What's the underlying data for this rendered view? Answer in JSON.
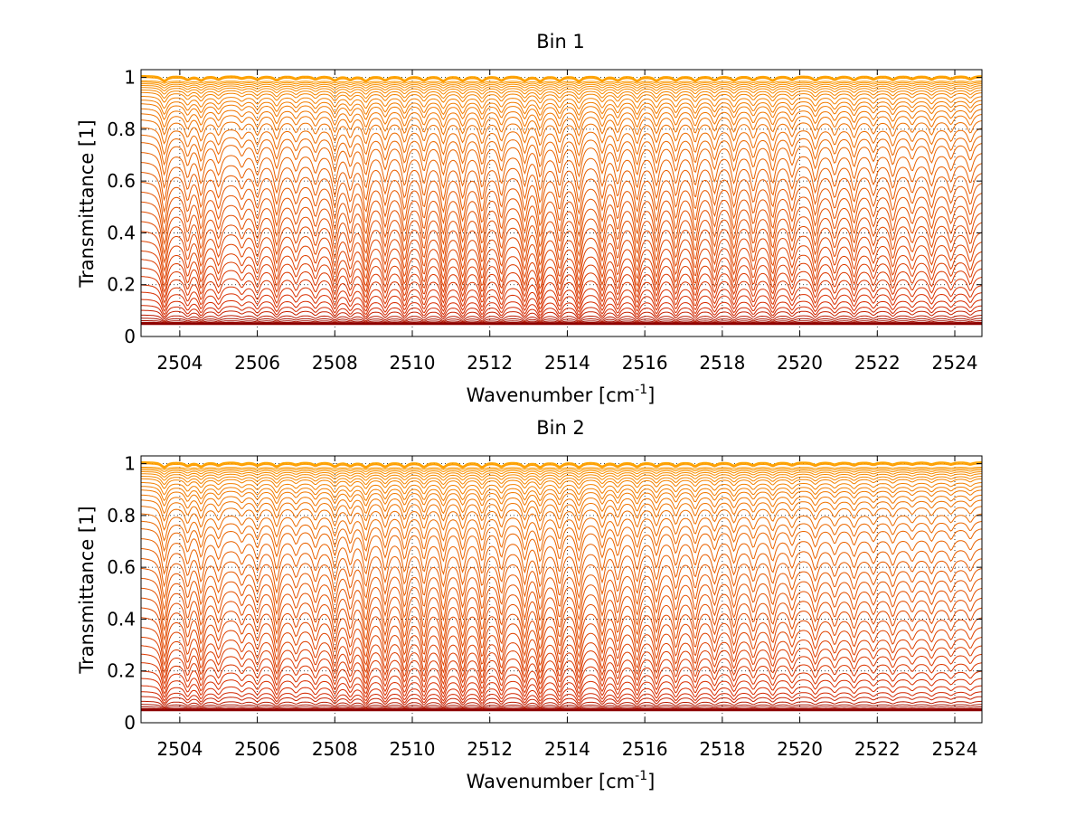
{
  "chart_data": [
    {
      "type": "line",
      "title": "Bin 1",
      "xlabel": "Wavenumber [cm",
      "xlabel_exponent": "-1",
      "xlabel_suffix": "]",
      "ylabel": "Transmittance [1]",
      "xlim": [
        2503,
        2524.7
      ],
      "ylim": [
        0,
        1.03
      ],
      "grid": true,
      "x_ticks": [
        2504,
        2506,
        2508,
        2510,
        2512,
        2514,
        2516,
        2518,
        2520,
        2522,
        2524
      ],
      "y_ticks": [
        0,
        0.2,
        0.4,
        0.6,
        0.8,
        1
      ],
      "y_tick_labels": [
        "0",
        "0.2",
        "0.4",
        "0.6",
        "0.8",
        "1"
      ],
      "series_baselines": [
        0.0,
        0.005,
        0.012,
        0.022,
        0.035,
        0.055,
        0.075,
        0.1,
        0.13,
        0.16,
        0.195,
        0.23,
        0.265,
        0.3,
        0.34,
        0.38,
        0.42,
        0.46,
        0.5,
        0.54,
        0.58,
        0.62,
        0.66,
        0.7,
        0.74,
        0.77,
        0.8,
        0.83,
        0.855,
        0.875,
        0.895,
        0.91,
        0.925,
        0.94,
        0.95,
        0.96,
        0.968,
        0.975,
        0.981,
        0.986,
        0.99,
        0.993,
        0.996,
        0.998
      ],
      "line_color_low": "#8b0000",
      "line_color_mid": "#d72a00",
      "line_color_high": "#ffa500",
      "absorption_lines": [
        {
          "x": 2503.6,
          "depth": 0.9
        },
        {
          "x": 2504.2,
          "depth": 0.6
        },
        {
          "x": 2504.55,
          "depth": 0.75
        },
        {
          "x": 2505.0,
          "depth": 0.55
        },
        {
          "x": 2505.6,
          "depth": 0.35
        },
        {
          "x": 2506.0,
          "depth": 0.55
        },
        {
          "x": 2506.5,
          "depth": 0.7
        },
        {
          "x": 2507.0,
          "depth": 0.45
        },
        {
          "x": 2507.5,
          "depth": 0.5
        },
        {
          "x": 2508.0,
          "depth": 0.75
        },
        {
          "x": 2508.4,
          "depth": 0.6
        },
        {
          "x": 2508.8,
          "depth": 0.85
        },
        {
          "x": 2509.3,
          "depth": 0.7
        },
        {
          "x": 2509.8,
          "depth": 0.8
        },
        {
          "x": 2510.3,
          "depth": 0.75
        },
        {
          "x": 2510.8,
          "depth": 0.85
        },
        {
          "x": 2511.3,
          "depth": 0.8
        },
        {
          "x": 2511.8,
          "depth": 0.85
        },
        {
          "x": 2512.3,
          "depth": 0.75
        },
        {
          "x": 2512.9,
          "depth": 0.8
        },
        {
          "x": 2513.3,
          "depth": 0.9
        },
        {
          "x": 2513.8,
          "depth": 0.8
        },
        {
          "x": 2514.3,
          "depth": 0.9
        },
        {
          "x": 2514.9,
          "depth": 0.8
        },
        {
          "x": 2515.3,
          "depth": 0.75
        },
        {
          "x": 2515.8,
          "depth": 0.85
        },
        {
          "x": 2516.3,
          "depth": 0.8
        },
        {
          "x": 2516.8,
          "depth": 0.75
        },
        {
          "x": 2517.3,
          "depth": 0.8
        },
        {
          "x": 2517.8,
          "depth": 0.7
        },
        {
          "x": 2518.3,
          "depth": 0.75
        },
        {
          "x": 2518.8,
          "depth": 0.65
        },
        {
          "x": 2519.3,
          "depth": 0.75
        },
        {
          "x": 2519.8,
          "depth": 0.6
        },
        {
          "x": 2520.4,
          "depth": 0.7
        },
        {
          "x": 2520.9,
          "depth": 0.55
        },
        {
          "x": 2521.4,
          "depth": 0.65
        },
        {
          "x": 2521.9,
          "depth": 0.5
        },
        {
          "x": 2522.4,
          "depth": 0.6
        },
        {
          "x": 2522.9,
          "depth": 0.45
        },
        {
          "x": 2523.4,
          "depth": 0.55
        },
        {
          "x": 2523.9,
          "depth": 0.45
        },
        {
          "x": 2524.4,
          "depth": 0.5
        }
      ]
    },
    {
      "type": "line",
      "title": "Bin 2",
      "xlabel": "Wavenumber [cm",
      "xlabel_exponent": "-1",
      "xlabel_suffix": "]",
      "ylabel": "Transmittance [1]",
      "xlim": [
        2503,
        2524.7
      ],
      "ylim": [
        0,
        1.03
      ],
      "grid": true,
      "x_ticks": [
        2504,
        2506,
        2508,
        2510,
        2512,
        2514,
        2516,
        2518,
        2520,
        2522,
        2524
      ],
      "y_ticks": [
        0,
        0.2,
        0.4,
        0.6,
        0.8,
        1
      ],
      "y_tick_labels": [
        "0",
        "0.2",
        "0.4",
        "0.6",
        "0.8",
        "1"
      ],
      "series_baselines": [
        0.0,
        0.005,
        0.012,
        0.022,
        0.035,
        0.055,
        0.075,
        0.1,
        0.13,
        0.16,
        0.195,
        0.23,
        0.265,
        0.3,
        0.34,
        0.38,
        0.42,
        0.46,
        0.5,
        0.54,
        0.58,
        0.62,
        0.66,
        0.7,
        0.74,
        0.77,
        0.8,
        0.83,
        0.855,
        0.875,
        0.895,
        0.91,
        0.925,
        0.94,
        0.95,
        0.96,
        0.968,
        0.975,
        0.981,
        0.986,
        0.99,
        0.993,
        0.996,
        0.998
      ],
      "line_color_low": "#8b0000",
      "line_color_mid": "#d72a00",
      "line_color_high": "#ffa500",
      "absorption_lines": [
        {
          "x": 2503.6,
          "depth": 0.9
        },
        {
          "x": 2504.2,
          "depth": 0.6
        },
        {
          "x": 2504.55,
          "depth": 0.75
        },
        {
          "x": 2505.0,
          "depth": 0.5
        },
        {
          "x": 2505.6,
          "depth": 0.35
        },
        {
          "x": 2506.0,
          "depth": 0.5
        },
        {
          "x": 2506.5,
          "depth": 0.75
        },
        {
          "x": 2507.0,
          "depth": 0.4
        },
        {
          "x": 2507.5,
          "depth": 0.5
        },
        {
          "x": 2508.0,
          "depth": 0.7
        },
        {
          "x": 2508.4,
          "depth": 0.6
        },
        {
          "x": 2508.8,
          "depth": 0.85
        },
        {
          "x": 2509.3,
          "depth": 0.75
        },
        {
          "x": 2509.8,
          "depth": 0.8
        },
        {
          "x": 2510.3,
          "depth": 0.8
        },
        {
          "x": 2510.8,
          "depth": 0.85
        },
        {
          "x": 2511.3,
          "depth": 0.8
        },
        {
          "x": 2511.8,
          "depth": 0.85
        },
        {
          "x": 2512.3,
          "depth": 0.75
        },
        {
          "x": 2512.9,
          "depth": 0.8
        },
        {
          "x": 2513.3,
          "depth": 0.85
        },
        {
          "x": 2513.8,
          "depth": 0.8
        },
        {
          "x": 2514.3,
          "depth": 0.85
        },
        {
          "x": 2514.9,
          "depth": 0.75
        },
        {
          "x": 2515.3,
          "depth": 0.7
        },
        {
          "x": 2515.8,
          "depth": 0.75
        },
        {
          "x": 2516.3,
          "depth": 0.7
        },
        {
          "x": 2516.8,
          "depth": 0.65
        },
        {
          "x": 2517.3,
          "depth": 0.65
        },
        {
          "x": 2517.8,
          "depth": 0.55
        },
        {
          "x": 2518.3,
          "depth": 0.6
        },
        {
          "x": 2518.8,
          "depth": 0.5
        },
        {
          "x": 2519.3,
          "depth": 0.55
        },
        {
          "x": 2519.8,
          "depth": 0.45
        },
        {
          "x": 2520.4,
          "depth": 0.5
        },
        {
          "x": 2520.9,
          "depth": 0.4
        },
        {
          "x": 2521.4,
          "depth": 0.45
        },
        {
          "x": 2521.9,
          "depth": 0.35
        },
        {
          "x": 2522.4,
          "depth": 0.4
        },
        {
          "x": 2522.9,
          "depth": 0.3
        },
        {
          "x": 2523.4,
          "depth": 0.35
        },
        {
          "x": 2523.9,
          "depth": 0.3
        },
        {
          "x": 2524.4,
          "depth": 0.3
        }
      ]
    }
  ]
}
